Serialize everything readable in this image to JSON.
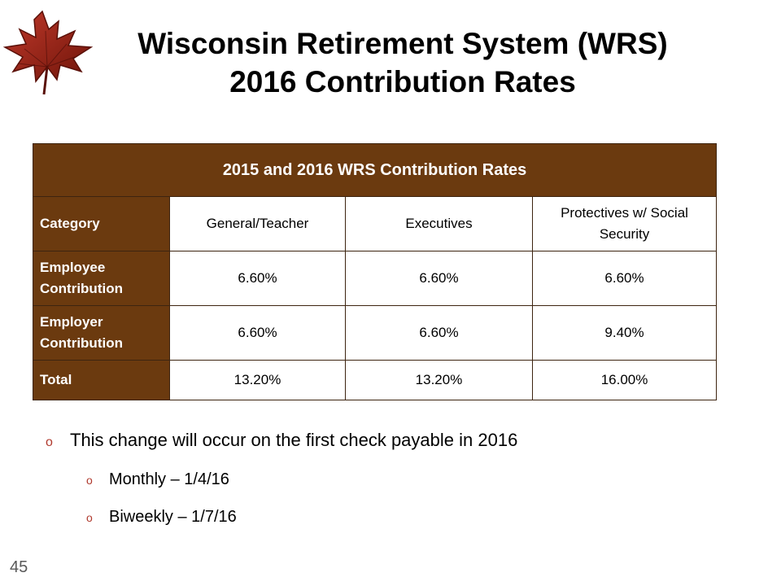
{
  "slide": {
    "title_line1": "Wisconsin Retirement System (WRS)",
    "title_line2": "2016 Contribution Rates",
    "page_number": "45"
  },
  "table": {
    "heading": "2015 and 2016 WRS Contribution Rates",
    "columns": [
      "Category",
      "General/Teacher",
      "Executives",
      "Protectives w/ Social Security"
    ],
    "rows": [
      {
        "label": "Employee Contribution",
        "values": [
          "6.60%",
          "6.60%",
          "6.60%"
        ]
      },
      {
        "label": "Employer Contribution",
        "values": [
          "6.60%",
          "6.60%",
          "9.40%"
        ]
      },
      {
        "label": "Total",
        "values": [
          "13.20%",
          "13.20%",
          "16.00%"
        ]
      }
    ]
  },
  "bullets": {
    "main": "This change will occur on the first check payable in 2016",
    "sub": [
      "Monthly – 1/4/16",
      "Biweekly – 1/7/16"
    ],
    "marker": "o"
  },
  "colors": {
    "table_header_bg": "#6b3a0f",
    "bullet_marker": "#b03a2e",
    "leaf": "#8b1e12"
  },
  "icons": {
    "logo": "maple-leaf-icon"
  }
}
